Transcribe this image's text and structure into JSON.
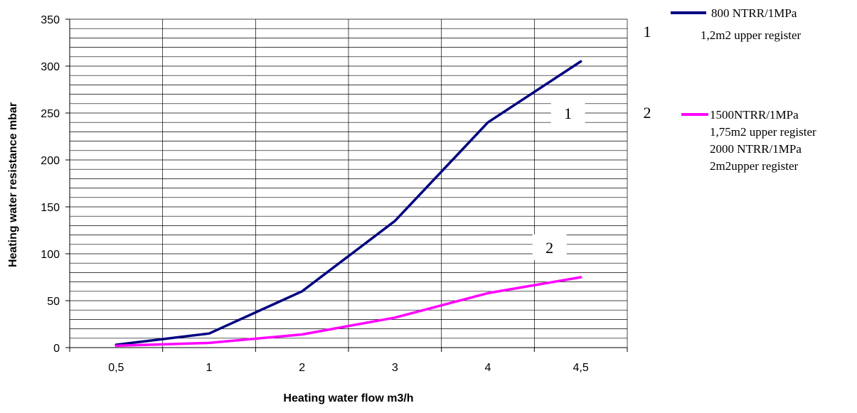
{
  "chart_data": {
    "type": "line",
    "title": "",
    "xlabel": "Heating water flow m3/h",
    "ylabel": "Heating water resistance  mbar",
    "categories": [
      "0,5",
      "1",
      "2",
      "3",
      "4",
      "4,5"
    ],
    "ylim": [
      0,
      350
    ],
    "yticks": [
      0,
      50,
      100,
      150,
      200,
      250,
      300,
      350
    ],
    "grid": true,
    "minor_grid_step": 10,
    "legend_position": "right",
    "series": [
      {
        "id": "1",
        "name": "800 NTRR/1MPa",
        "name_line2": "1,2m2  upper register",
        "color": "#000080",
        "values": [
          3,
          15,
          60,
          135,
          240,
          305
        ]
      },
      {
        "id": "2",
        "name": "1500NTRR/1MPa",
        "name_line2": "1,75m2 upper register",
        "name_line3": "2000 NTRR/1MPa",
        "name_line4": "2m2upper register",
        "color": "#ff00ff",
        "values": [
          2,
          5,
          14,
          32,
          58,
          75
        ]
      }
    ],
    "annotations": [
      {
        "text": "1",
        "series": "1",
        "box": true
      },
      {
        "text": "2",
        "series": "2",
        "box": true
      },
      {
        "text": "1",
        "series": "1",
        "legend_number": true
      },
      {
        "text": "2",
        "series": "2",
        "legend_number": true
      }
    ]
  }
}
